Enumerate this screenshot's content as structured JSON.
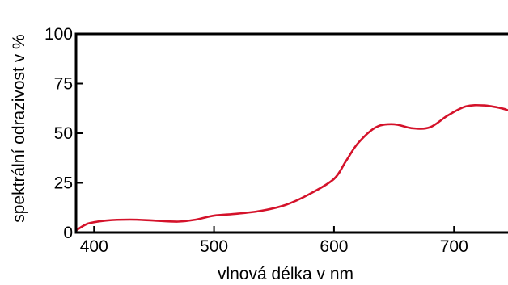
{
  "chart_data": {
    "type": "line",
    "xlabel": "vlnová délka v nm",
    "ylabel": "spektrální odrazivost v %",
    "xlim": [
      385,
      745
    ],
    "ylim": [
      0,
      100
    ],
    "x_ticks": [
      400,
      500,
      600,
      700
    ],
    "y_ticks": [
      0,
      25,
      50,
      75,
      100
    ],
    "x_tick_labels": [
      "400",
      "500",
      "600",
      "700"
    ],
    "y_tick_labels": [
      "0",
      "25",
      "50",
      "75",
      "100"
    ],
    "grid": false,
    "legend": "none",
    "series": [
      {
        "color": "#d4122a",
        "x": [
          385,
          395,
          410,
          430,
          450,
          470,
          485,
          500,
          520,
          540,
          560,
          580,
          600,
          610,
          620,
          635,
          650,
          665,
          680,
          695,
          710,
          725,
          740,
          745
        ],
        "y": [
          1,
          4.5,
          6,
          6.5,
          6,
          5.5,
          6.5,
          8.5,
          9.5,
          11,
          14,
          19.5,
          27,
          36,
          45,
          53,
          54.5,
          52.5,
          53,
          59,
          63.5,
          64,
          62.5,
          61.5
        ]
      }
    ]
  }
}
